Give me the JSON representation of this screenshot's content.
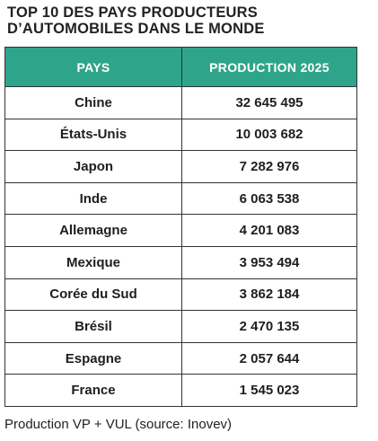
{
  "title": {
    "line1": "TOP 10 DES PAYS PRODUCTEURS",
    "line2": "D’AUTOMOBILES DANS LE MONDE"
  },
  "table": {
    "headers": [
      "PAYS",
      "PRODUCTION 2025"
    ],
    "rows": [
      [
        "Chine",
        "32 645 495"
      ],
      [
        "États-Unis",
        "10 003 682"
      ],
      [
        "Japon",
        "7 282 976"
      ],
      [
        "Inde",
        "6 063 538"
      ],
      [
        "Allemagne",
        "4 201 083"
      ],
      [
        "Mexique",
        "3 953 494"
      ],
      [
        "Corée du Sud",
        "3 862 184"
      ],
      [
        "Brésil",
        "2 470 135"
      ],
      [
        "Espagne",
        "2 057 644"
      ],
      [
        "France",
        "1 545 023"
      ]
    ]
  },
  "footnote": "Production VP + VUL (source: Inovev)",
  "colors": {
    "header_bg": "#2ea58a",
    "header_text": "#ffffff",
    "border": "#333333"
  }
}
